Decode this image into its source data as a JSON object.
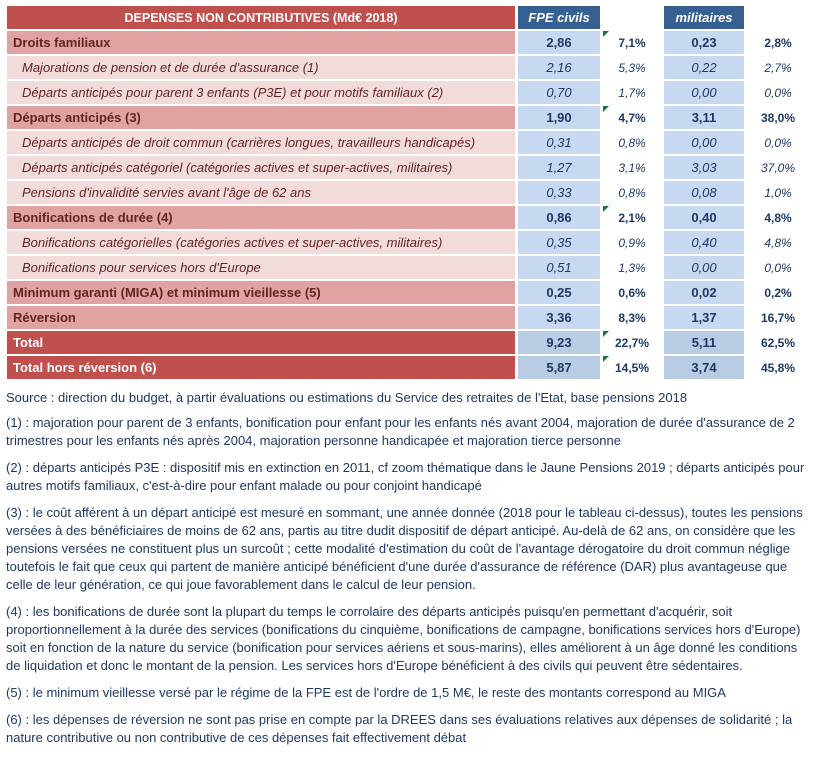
{
  "table": {
    "title": "DEPENSES NON CONTRIBUTIVES (Md€ 2018)",
    "col_groups": [
      "FPE civils",
      "militaires"
    ],
    "rows": [
      {
        "label": "Droits familiaux",
        "style": "cat",
        "fpe": "2,86",
        "fpe_pct": "7,1%",
        "mil": "0,23",
        "mil_pct": "2,8%",
        "flag": true
      },
      {
        "label": "Majorations de pension et de durée d'assurance (1)",
        "style": "sub",
        "fpe": "2,16",
        "fpe_pct": "5,3%",
        "mil": "0,22",
        "mil_pct": "2,7%",
        "flag": false
      },
      {
        "label": "Départs anticipés pour parent 3 enfants (P3E) et pour motifs familiaux (2)",
        "style": "sub",
        "fpe": "0,70",
        "fpe_pct": "1,7%",
        "mil": "0,00",
        "mil_pct": "0,0%",
        "flag": false
      },
      {
        "label": "Départs anticipés (3)",
        "style": "cat",
        "fpe": "1,90",
        "fpe_pct": "4,7%",
        "mil": "3,11",
        "mil_pct": "38,0%",
        "flag": true
      },
      {
        "label": "Départs anticipés de droit commun (carrières longues, travailleurs handicapés)",
        "style": "sub",
        "fpe": "0,31",
        "fpe_pct": "0,8%",
        "mil": "0,00",
        "mil_pct": "0,0%",
        "flag": false
      },
      {
        "label": "Départs anticipés catégoriel (catégories actives et super-actives, militaires)",
        "style": "sub",
        "fpe": "1,27",
        "fpe_pct": "3,1%",
        "mil": "3,03",
        "mil_pct": "37,0%",
        "flag": false
      },
      {
        "label": "Pensions d'invalidité servies avant l'âge de 62 ans",
        "style": "sub",
        "fpe": "0,33",
        "fpe_pct": "0,8%",
        "mil": "0,08",
        "mil_pct": "1,0%",
        "flag": false
      },
      {
        "label": "Bonifications de durée (4)",
        "style": "cat",
        "fpe": "0,86",
        "fpe_pct": "2,1%",
        "mil": "0,40",
        "mil_pct": "4,8%",
        "flag": true
      },
      {
        "label": "Bonifications catégorielles (catégories actives et super-actives, militaires)",
        "style": "sub",
        "fpe": "0,35",
        "fpe_pct": "0,9%",
        "mil": "0,40",
        "mil_pct": "4,8%",
        "flag": false
      },
      {
        "label": "Bonifications pour services hors d'Europe",
        "style": "sub",
        "fpe": "0,51",
        "fpe_pct": "1,3%",
        "mil": "0,00",
        "mil_pct": "0,0%",
        "flag": false
      },
      {
        "label": "Minimum garanti (MIGA) et minimum vieillesse (5)",
        "style": "cat",
        "fpe": "0,25",
        "fpe_pct": "0,6%",
        "mil": "0,02",
        "mil_pct": "0,2%",
        "flag": false
      },
      {
        "label": "Réversion",
        "style": "cat",
        "fpe": "3,36",
        "fpe_pct": "8,3%",
        "mil": "1,37",
        "mil_pct": "16,7%",
        "flag": false
      },
      {
        "label": "Total",
        "style": "total",
        "fpe": "9,23",
        "fpe_pct": "22,7%",
        "mil": "5,11",
        "mil_pct": "62,5%",
        "flag": true
      },
      {
        "label": "Total hors réversion (6)",
        "style": "total",
        "fpe": "5,87",
        "fpe_pct": "14,5%",
        "mil": "3,74",
        "mil_pct": "45,8%",
        "flag": true
      }
    ]
  },
  "notes": {
    "source": "Source : direction du budget, à partir évaluations ou estimations du Service des retraites de l'Etat, base pensions 2018",
    "footnotes": [
      "(1) : majoration pour parent de 3 enfants, bonification pour enfant pour les enfants nés avant 2004, majoration de durée d'assurance de 2 trimestres pour les enfants nés après 2004, majoration personne handicapée et majoration tierce personne",
      "(2) : départs anticipés P3E : dispositif mis en extinction en 2011, cf zoom thématique dans le Jaune Pensions 2019 ; départs anticipés pour autres motifs familiaux, c'est-à-dire pour enfant malade ou pour conjoint handicapé",
      "(3) : le coût afférent à un  départ anticipé est mesuré en sommant, une année donnée (2018 pour le tableau ci-dessus), toutes les pensions versées à des bénéficiaires de moins de 62 ans, partis au titre dudit dispositif de départ anticipé. Au-delà de 62 ans, on considère que les pensions versées ne constituent plus un surcoût ; cette modalité d'estimation du coût de l'avantage dérogatoire du droit commun néglige toutefois le fait que ceux qui partent de manière anticipé bénéficient d'une durée d'assurance de référence (DAR) plus avantageuse que celle de leur génération, ce qui joue favorablement dans le calcul de leur pension.",
      "(4) : les bonifications de durée sont la plupart du temps le corrolaire des départs anticipés puisqu'en permettant d'acquérir, soit proportionnellement à la durée des services (bonifications du cinquième, bonifications de campagne, bonifications services hors d'Europe) soit en fonction de la nature du service (bonification pour services aériens et sous-marins), elles améliorent à un âge donné les conditions de liquidation et donc le montant de la pension. Les services hors d'Europe bénéficient à des civils qui peuvent être sédentaires.",
      "(5) : le minimum vieillesse versé par le régime de la FPE est de l'ordre de 1,5 M€, le reste des montants correspond au MIGA",
      "(6) : les dépenses de réversion ne sont pas prise en compte par la DREES dans ses évaluations relatives aux dépenses de solidarité ; la nature contributive ou non contributive de ces dépenses fait effectivement débat"
    ]
  },
  "colors": {
    "header_red": "#C0504D",
    "category_pink": "#E1A3A2",
    "subrow_pink": "#F2DCDB",
    "header_blue": "#376092",
    "value_blue": "#C7D9F0",
    "total_value_blue": "#B8CCE4",
    "flag_green": "#1E7145",
    "label_text": "#632423",
    "number_text": "#1F3864"
  }
}
